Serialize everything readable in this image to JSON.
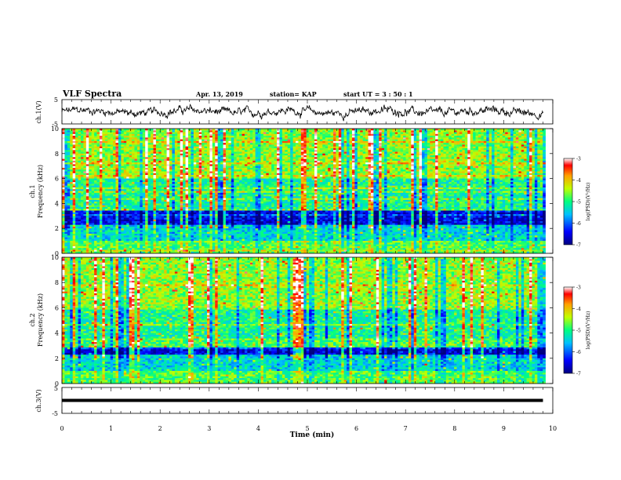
{
  "header": {
    "title": "VLF Spectra",
    "date": "Apr. 13, 2019",
    "station": "station= KAP",
    "start": "start  UT =   3 : 50 : 1"
  },
  "chart_data": [
    {
      "type": "line",
      "id": "ch1-waveform",
      "ylabel": "ch.1(V)",
      "ylim": [
        -5,
        5
      ],
      "yticks": [
        "5",
        "-5"
      ],
      "xlim": [
        0,
        10
      ],
      "x_extent_min": 9.8,
      "note": "noisy waveform fluctuating around 0 V"
    },
    {
      "type": "heatmap",
      "id": "ch1-spectrogram",
      "ylabel_line1": "ch.1",
      "ylabel_line2": "Frequency (kHz)",
      "ylim": [
        0,
        10
      ],
      "yticks": [
        "0",
        "2",
        "4",
        "6",
        "8",
        "10"
      ],
      "xlim": [
        0,
        10
      ],
      "colorbar": {
        "label": "log(PSD)(V²/Hz)",
        "range": [
          -7,
          -3
        ],
        "ticks": [
          "-3",
          "-4",
          "-5",
          "-6",
          "-7"
        ]
      }
    },
    {
      "type": "heatmap",
      "id": "ch2-spectrogram",
      "ylabel_line1": "ch.2",
      "ylabel_line2": "Frequency (kHz)",
      "ylim": [
        0,
        10
      ],
      "yticks": [
        "0",
        "2",
        "4",
        "6",
        "8",
        "10"
      ],
      "xlim": [
        0,
        10
      ],
      "colorbar": {
        "label": "log(PSD)(V²/Hz)",
        "range": [
          -7,
          -3
        ],
        "ticks": [
          "-3",
          "-4",
          "-5",
          "-6",
          "-7"
        ]
      }
    },
    {
      "type": "line",
      "id": "ch3-waveform",
      "ylabel": "ch.3(V)",
      "ylim": [
        -5,
        5
      ],
      "yticks": [
        "5",
        "-5"
      ],
      "xlim": [
        0,
        10
      ],
      "constant_value": 0,
      "x_extent_min": 9.8
    }
  ],
  "xaxis": {
    "label": "Time (min)",
    "ticks": [
      "0",
      "1",
      "2",
      "3",
      "4",
      "5",
      "6",
      "7",
      "8",
      "9",
      "10"
    ]
  }
}
